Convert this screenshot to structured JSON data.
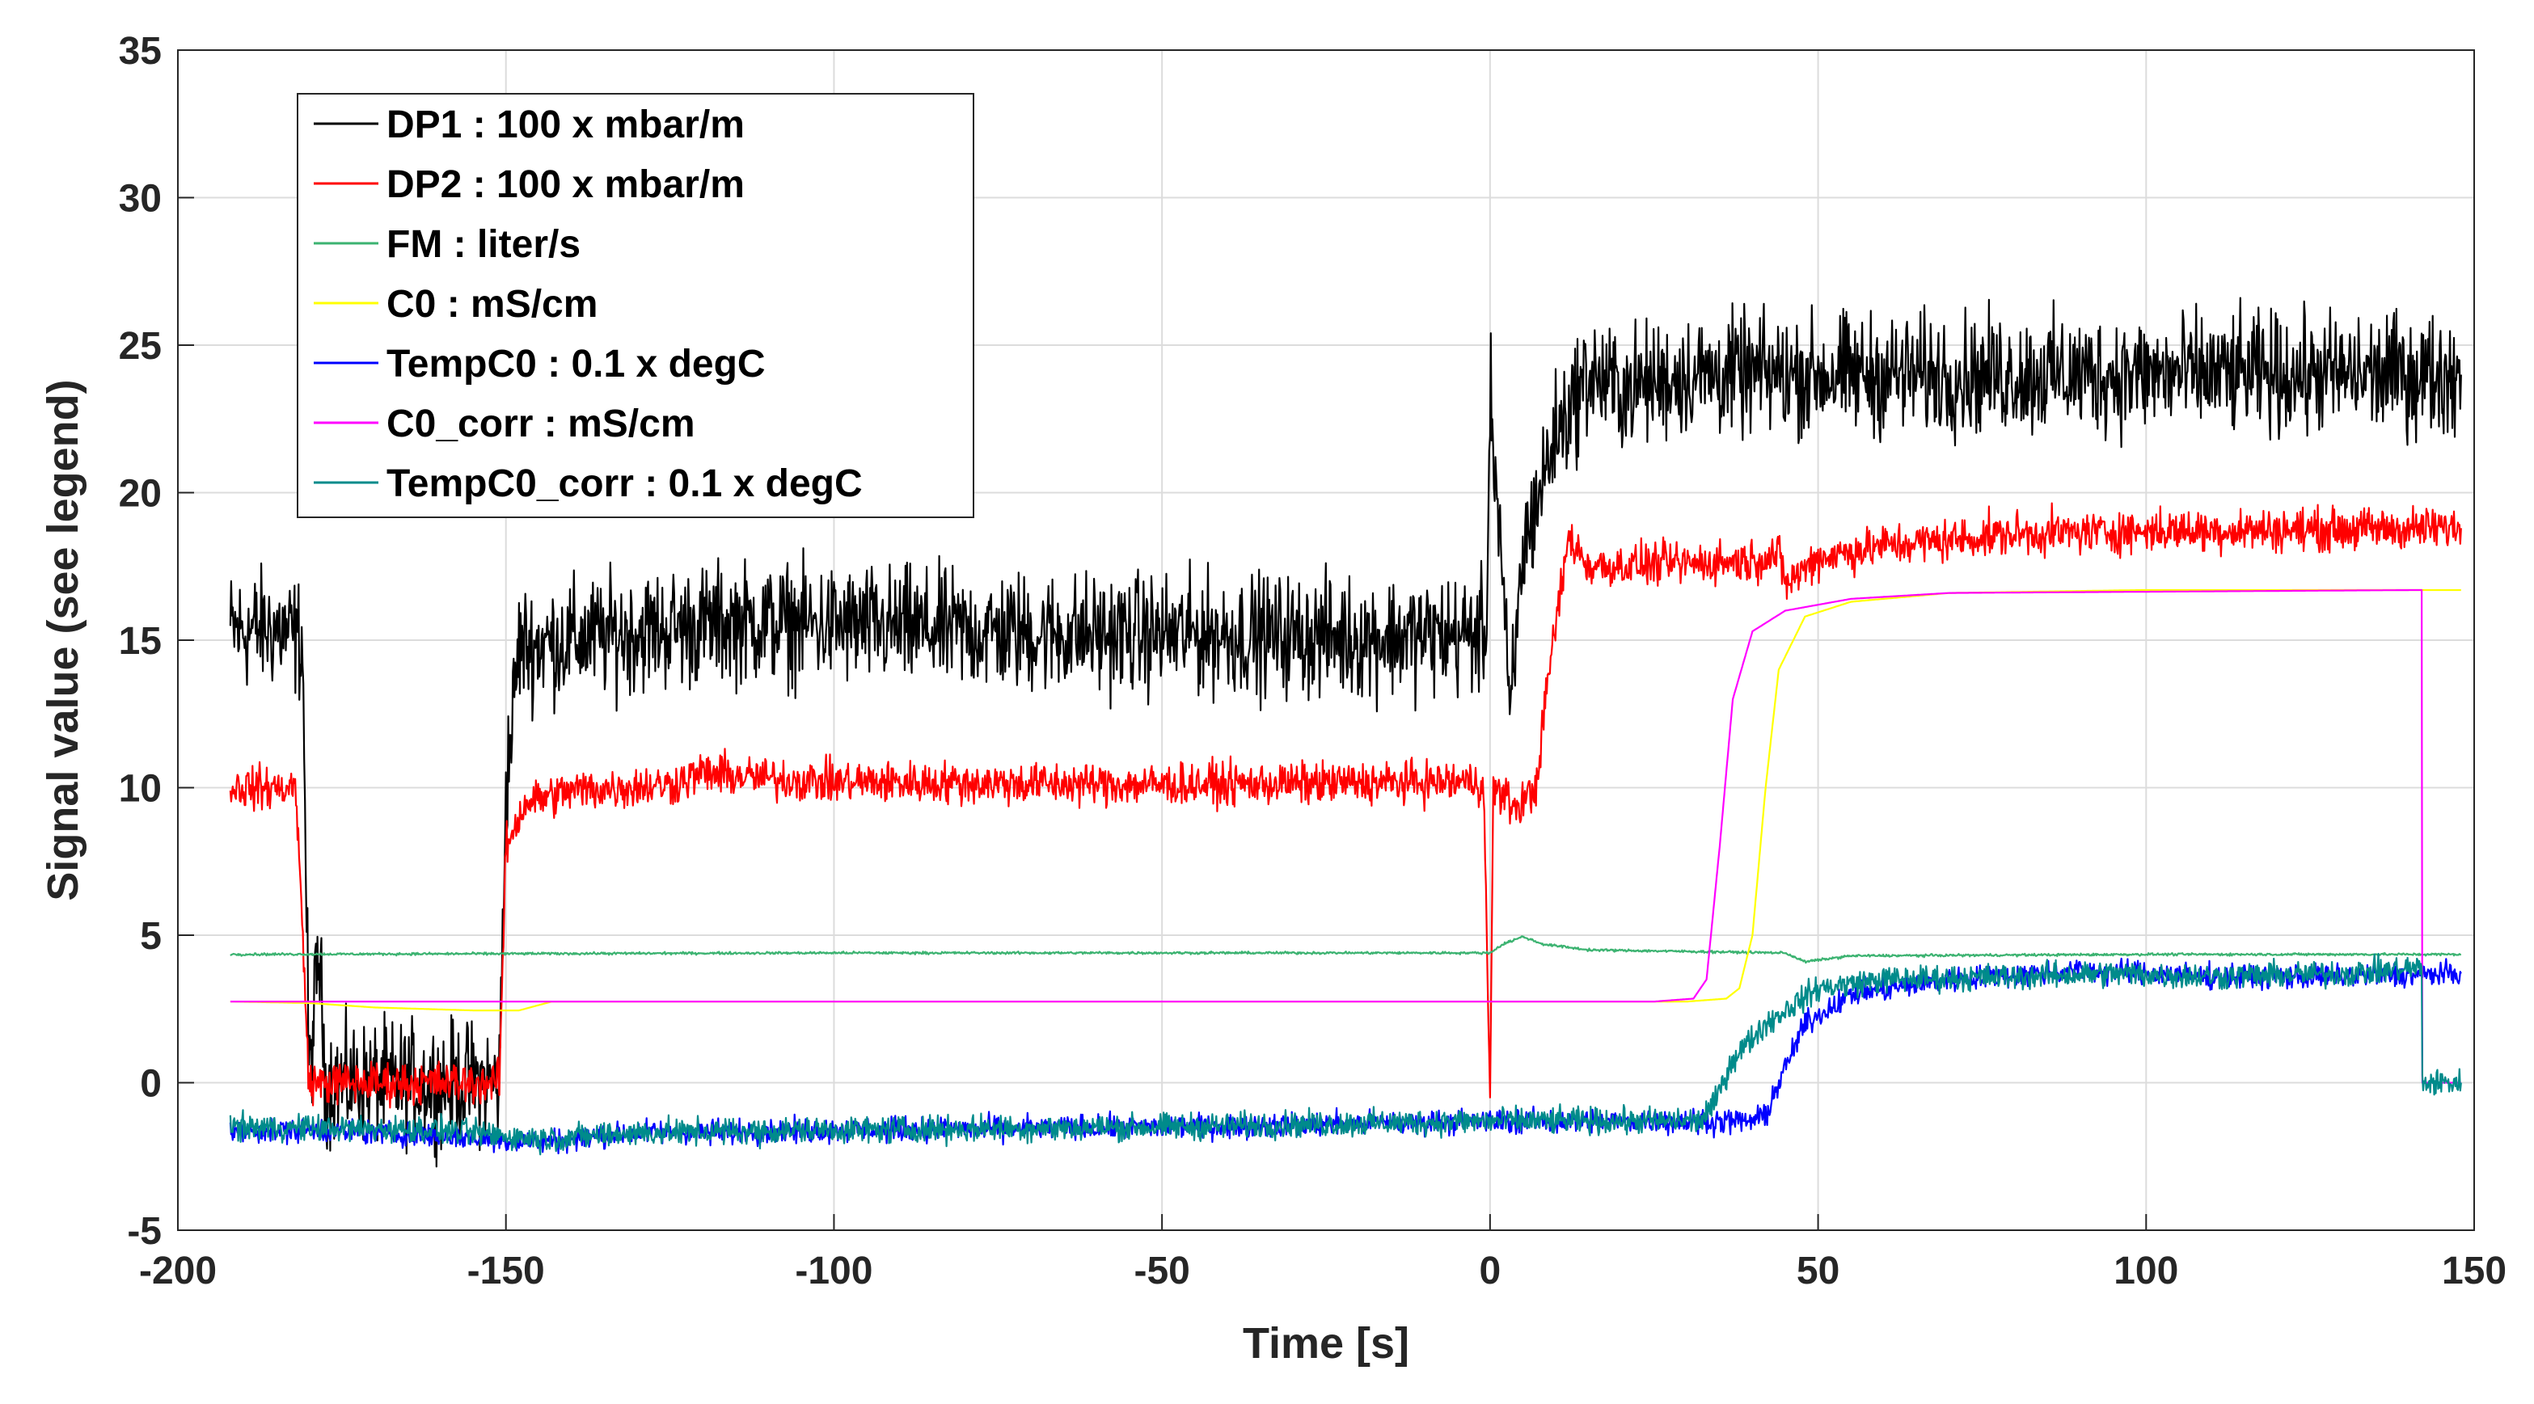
{
  "chart_data": {
    "type": "line",
    "title": "",
    "xlabel": "Time [s]",
    "ylabel": "Signal value (see legend)",
    "xlim": [
      -200,
      150
    ],
    "ylim": [
      -5,
      35
    ],
    "xticks": [
      -200,
      -150,
      -100,
      -50,
      0,
      50,
      100,
      150
    ],
    "yticks": [
      -5,
      0,
      5,
      10,
      15,
      20,
      25,
      30,
      35
    ],
    "grid": true,
    "legend_position": "top-left",
    "series": [
      {
        "name": "DP1 : 100 x mbar/m",
        "color": "#000000",
        "noise": 1.0,
        "points": [
          [
            -192,
            15.3
          ],
          [
            -185,
            15.4
          ],
          [
            -181,
            15.0
          ],
          [
            -180,
            0.0
          ],
          [
            -178.5,
            4.5
          ],
          [
            -177.5,
            0.0
          ],
          [
            -151,
            0.0
          ],
          [
            -150,
            10.0
          ],
          [
            -148,
            14.8
          ],
          [
            -140,
            15.0
          ],
          [
            -130,
            15.3
          ],
          [
            -115,
            15.6
          ],
          [
            -100,
            15.5
          ],
          [
            -80,
            15.3
          ],
          [
            -60,
            15.2
          ],
          [
            -40,
            15.2
          ],
          [
            -20,
            15.1
          ],
          [
            -0.5,
            15.2
          ],
          [
            0,
            23.5
          ],
          [
            2,
            17.0
          ],
          [
            3,
            12.0
          ],
          [
            5,
            18.0
          ],
          [
            10,
            22.0
          ],
          [
            15,
            24.0
          ],
          [
            20,
            23.5
          ],
          [
            30,
            24.0
          ],
          [
            50,
            24.0
          ],
          [
            80,
            24.0
          ],
          [
            120,
            24.0
          ],
          [
            148,
            24.0
          ]
        ]
      },
      {
        "name": "DP2 : 100 x mbar/m",
        "color": "#ff0000",
        "noise": 0.35,
        "points": [
          [
            -192,
            10.0
          ],
          [
            -182,
            10.0
          ],
          [
            -180,
            0.0
          ],
          [
            -151,
            0.0
          ],
          [
            -150,
            8.0
          ],
          [
            -147,
            9.5
          ],
          [
            -140,
            9.9
          ],
          [
            -125,
            10.1
          ],
          [
            -120,
            10.5
          ],
          [
            -110,
            10.3
          ],
          [
            -100,
            10.2
          ],
          [
            -50,
            10.1
          ],
          [
            -1,
            10.2
          ],
          [
            0,
            -0.5
          ],
          [
            0.5,
            10.0
          ],
          [
            4,
            9.3
          ],
          [
            7,
            10.0
          ],
          [
            9,
            14.0
          ],
          [
            12,
            18.5
          ],
          [
            15,
            17.5
          ],
          [
            30,
            17.6
          ],
          [
            40,
            17.7
          ],
          [
            44,
            17.9
          ],
          [
            45,
            16.9
          ],
          [
            50,
            17.8
          ],
          [
            60,
            18.2
          ],
          [
            80,
            18.6
          ],
          [
            100,
            18.7
          ],
          [
            148,
            18.8
          ]
        ]
      },
      {
        "name": "FM : liter/s",
        "color": "#3cb371",
        "noise": 0.02,
        "points": [
          [
            -192,
            4.35
          ],
          [
            -100,
            4.4
          ],
          [
            0,
            4.4
          ],
          [
            2,
            4.7
          ],
          [
            5,
            4.95
          ],
          [
            8,
            4.7
          ],
          [
            15,
            4.5
          ],
          [
            45,
            4.4
          ],
          [
            48,
            4.1
          ],
          [
            55,
            4.3
          ],
          [
            100,
            4.35
          ],
          [
            148,
            4.35
          ]
        ]
      },
      {
        "name": "C0 : mS/cm",
        "color": "#ffff00",
        "noise": 0.0,
        "points": [
          [
            -192,
            2.75
          ],
          [
            -180,
            2.7
          ],
          [
            -170,
            2.55
          ],
          [
            -155,
            2.45
          ],
          [
            -148,
            2.45
          ],
          [
            -143,
            2.75
          ],
          [
            0,
            2.75
          ],
          [
            30,
            2.75
          ],
          [
            36,
            2.85
          ],
          [
            38,
            3.2
          ],
          [
            40,
            5.0
          ],
          [
            42,
            10.0
          ],
          [
            44,
            14.0
          ],
          [
            48,
            15.8
          ],
          [
            55,
            16.3
          ],
          [
            70,
            16.6
          ],
          [
            100,
            16.7
          ],
          [
            148,
            16.7
          ]
        ]
      },
      {
        "name": "TempC0 : 0.1 x degC",
        "color": "#0000ff",
        "noise": 0.2,
        "points": [
          [
            -192,
            -1.6
          ],
          [
            -180,
            -1.6
          ],
          [
            -160,
            -1.8
          ],
          [
            -145,
            -2.0
          ],
          [
            -130,
            -1.7
          ],
          [
            -100,
            -1.6
          ],
          [
            -50,
            -1.5
          ],
          [
            0,
            -1.3
          ],
          [
            40,
            -1.3
          ],
          [
            42,
            -1.1
          ],
          [
            45,
            0.5
          ],
          [
            48,
            2.0
          ],
          [
            55,
            3.0
          ],
          [
            70,
            3.5
          ],
          [
            90,
            3.8
          ],
          [
            110,
            3.6
          ],
          [
            130,
            3.6
          ],
          [
            148,
            3.7
          ]
        ]
      },
      {
        "name": "C0_corr : mS/cm",
        "color": "#ff00ff",
        "noise": 0.0,
        "points": [
          [
            -192,
            2.75
          ],
          [
            -150,
            2.75
          ],
          [
            0,
            2.75
          ],
          [
            25,
            2.75
          ],
          [
            31,
            2.85
          ],
          [
            33,
            3.5
          ],
          [
            35,
            8.0
          ],
          [
            37,
            13.0
          ],
          [
            40,
            15.3
          ],
          [
            45,
            16.0
          ],
          [
            55,
            16.4
          ],
          [
            70,
            16.6
          ],
          [
            142,
            16.7
          ],
          [
            142.1,
            0.0
          ],
          [
            148,
            0.0
          ]
        ]
      },
      {
        "name": "TempC0_corr : 0.1 x degC",
        "color": "#008b8b",
        "noise": 0.22,
        "points": [
          [
            -192,
            -1.5
          ],
          [
            -160,
            -1.6
          ],
          [
            -145,
            -1.9
          ],
          [
            -130,
            -1.7
          ],
          [
            -100,
            -1.6
          ],
          [
            -50,
            -1.5
          ],
          [
            0,
            -1.3
          ],
          [
            32,
            -1.3
          ],
          [
            34,
            -0.8
          ],
          [
            37,
            0.8
          ],
          [
            42,
            2.0
          ],
          [
            50,
            3.2
          ],
          [
            60,
            3.5
          ],
          [
            80,
            3.6
          ],
          [
            95,
            3.7
          ],
          [
            110,
            3.6
          ],
          [
            130,
            3.7
          ],
          [
            142,
            3.9
          ],
          [
            142.1,
            0.0
          ],
          [
            148,
            0.0
          ]
        ]
      }
    ]
  }
}
